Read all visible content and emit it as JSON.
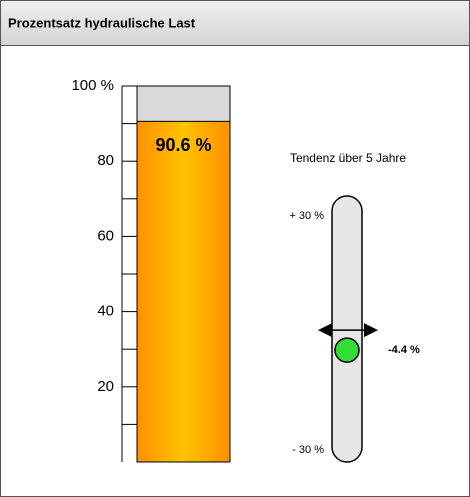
{
  "chart_data": [
    {
      "type": "bar",
      "title": "Prozentsatz hydraulische Last",
      "values": [
        90.6
      ],
      "value_labels": [
        "90.6 %"
      ],
      "ylim": [
        0,
        100
      ],
      "yticks": [
        20,
        40,
        60,
        80,
        {
          "value": 100,
          "label": "100 %"
        }
      ],
      "minor_yticks": [
        10,
        30,
        50,
        70,
        90
      ],
      "color": "#ff9900",
      "background_color": "#d9d9d9"
    },
    {
      "type": "slider",
      "title": "Tendenz über 5 Jahre",
      "values": [
        -4.4
      ],
      "value_labels": [
        "-4.4 %"
      ],
      "ylim": [
        -30,
        30
      ],
      "yticks": [
        {
          "value": 30,
          "label": "+ 30 %"
        },
        {
          "value": -30,
          "label": "- 30 %"
        }
      ],
      "color": "#33dd33"
    }
  ]
}
